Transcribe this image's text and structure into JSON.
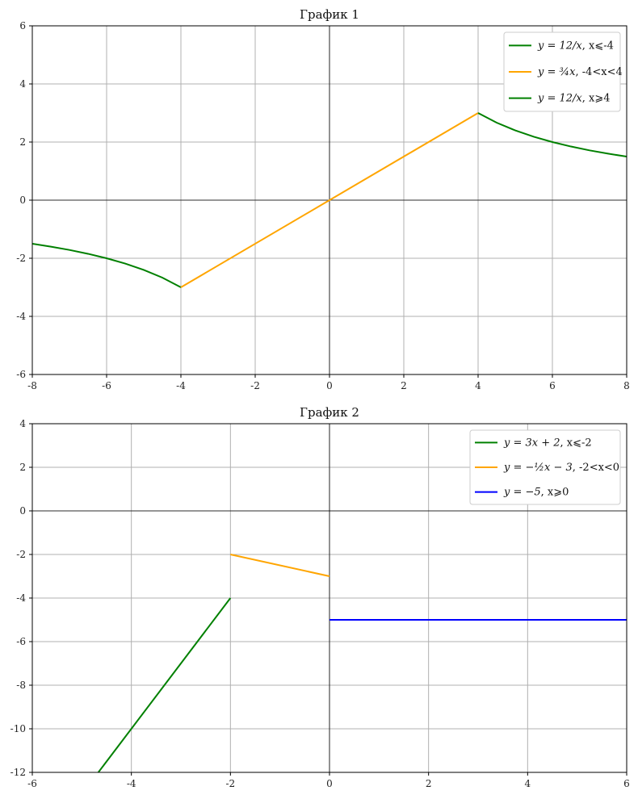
{
  "chart_data": [
    {
      "type": "line",
      "title": "График 1",
      "xlabel": "",
      "ylabel": "",
      "xlim": [
        -8,
        8
      ],
      "ylim": [
        -6,
        6
      ],
      "xticks": [
        -8,
        -6,
        -4,
        -2,
        0,
        2,
        4,
        6,
        8
      ],
      "yticks": [
        -6,
        -4,
        -2,
        0,
        2,
        4,
        6
      ],
      "xtick_labels": [
        "-8",
        "-6",
        "-4",
        "-2",
        "0",
        "2",
        "4",
        "6",
        "8"
      ],
      "ytick_labels": [
        "-6",
        "-4",
        "-2",
        "0",
        "2",
        "4",
        "6"
      ],
      "grid": true,
      "legend_position": "top-right",
      "series": [
        {
          "name": "y = 12/x, x⩽-4",
          "legend_math": "y = 12/x",
          "legend_cond": ", x⩽-4",
          "color": "#008000",
          "x": [
            -8,
            -7.5,
            -7,
            -6.5,
            -6,
            -5.5,
            -5,
            -4.5,
            -4
          ],
          "y": [
            -1.5,
            -1.6,
            -1.714,
            -1.846,
            -2,
            -2.182,
            -2.4,
            -2.667,
            -3
          ]
        },
        {
          "name": "y = (3/4)x, -4<x<4",
          "legend_math": "y = ¾x",
          "legend_cond": ", -4<x<4",
          "color": "#FFA500",
          "x": [
            -4,
            4
          ],
          "y": [
            -3,
            3
          ]
        },
        {
          "name": "y = 12/x, x⩾4",
          "legend_math": "y = 12/x",
          "legend_cond": ", x⩾4",
          "color": "#008000",
          "x": [
            4,
            4.5,
            5,
            5.5,
            6,
            6.5,
            7,
            7.5,
            8
          ],
          "y": [
            3,
            2.667,
            2.4,
            2.182,
            2,
            1.846,
            1.714,
            1.6,
            1.5
          ]
        }
      ]
    },
    {
      "type": "line",
      "title": "График 2",
      "xlabel": "",
      "ylabel": "",
      "xlim": [
        -6,
        6
      ],
      "ylim": [
        -12,
        4
      ],
      "xticks": [
        -6,
        -4,
        -2,
        0,
        2,
        4,
        6
      ],
      "yticks": [
        -12,
        -10,
        -8,
        -6,
        -4,
        -2,
        0,
        2,
        4
      ],
      "xtick_labels": [
        "-6",
        "-4",
        "-2",
        "0",
        "2",
        "4",
        "6"
      ],
      "ytick_labels": [
        "-12",
        "-10",
        "-8",
        "-6",
        "-4",
        "-2",
        "0",
        "2",
        "4"
      ],
      "grid": true,
      "legend_position": "top-right",
      "series": [
        {
          "name": "y = 3x + 2, x⩽-2",
          "legend_math": "y = 3x + 2",
          "legend_cond": ", x⩽-2",
          "color": "#008000",
          "x": [
            -4.667,
            -2
          ],
          "y": [
            -12,
            -4
          ]
        },
        {
          "name": "y = -(1/2)x - 3, -2<x<0",
          "legend_math": "y = −½x − 3",
          "legend_cond": ", -2<x<0",
          "color": "#FFA500",
          "x": [
            -2,
            0
          ],
          "y": [
            -2,
            -3
          ]
        },
        {
          "name": "y = -5, x⩾0",
          "legend_math": "y = −5",
          "legend_cond": ", x⩾0",
          "color": "#0000FF",
          "x": [
            0,
            6
          ],
          "y": [
            -5,
            -5
          ]
        }
      ]
    }
  ]
}
